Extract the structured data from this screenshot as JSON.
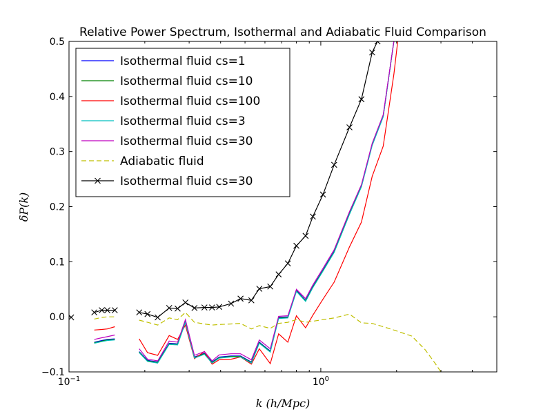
{
  "chart_data": {
    "type": "line",
    "title": "Relative Power Spectrum, Isothermal and Adiabatic Fluid Comparison",
    "xlabel": "k (h/Mpc)",
    "ylabel": "δP(k)",
    "xscale": "log",
    "xlim": [
      0.1,
      5.0
    ],
    "ylim": [
      -0.1,
      0.5
    ],
    "x_tick_labels": [
      {
        "value": 0.1,
        "base": "10",
        "exp": "−1"
      },
      {
        "value": 1.0,
        "base": "10",
        "exp": "0"
      }
    ],
    "y_ticks": [
      -0.1,
      0.0,
      0.1,
      0.2,
      0.3,
      0.4,
      0.5
    ],
    "y_tick_labels": [
      "−0.1",
      "0.0",
      "0.1",
      "0.2",
      "0.3",
      "0.4",
      "0.5"
    ],
    "legend_position": "upper-left",
    "series": [
      {
        "name": "Isothermal fluid cs=1",
        "color": "#0000ff",
        "style": "solid",
        "marker": "none",
        "points": [
          [
            0.126,
            -0.046
          ],
          [
            0.135,
            -0.043
          ],
          [
            0.142,
            -0.041
          ],
          [
            0.152,
            -0.04
          ],
          null,
          [
            0.19,
            -0.063
          ],
          [
            0.205,
            -0.079
          ],
          [
            0.225,
            -0.082
          ],
          [
            0.25,
            -0.048
          ],
          [
            0.27,
            -0.049
          ],
          [
            0.29,
            -0.008
          ],
          [
            0.315,
            -0.073
          ],
          [
            0.345,
            -0.066
          ],
          [
            0.37,
            -0.082
          ],
          [
            0.395,
            -0.073
          ],
          [
            0.44,
            -0.071
          ],
          [
            0.48,
            -0.071
          ],
          [
            0.53,
            -0.082
          ],
          [
            0.57,
            -0.046
          ],
          [
            0.63,
            -0.062
          ],
          [
            0.68,
            -0.001
          ],
          [
            0.74,
            0.0
          ],
          [
            0.8,
            0.048
          ],
          [
            0.87,
            0.03
          ],
          [
            0.93,
            0.055
          ],
          [
            1.02,
            0.085
          ],
          [
            1.13,
            0.119
          ],
          [
            1.3,
            0.188
          ],
          [
            1.45,
            0.238
          ],
          [
            1.6,
            0.313
          ],
          [
            1.77,
            0.365
          ],
          [
            1.95,
            0.5
          ]
        ]
      },
      {
        "name": "Isothermal fluid cs=10",
        "color": "#008000",
        "style": "solid",
        "marker": "none",
        "points": [
          [
            0.126,
            -0.047
          ],
          [
            0.135,
            -0.044
          ],
          [
            0.142,
            -0.042
          ],
          [
            0.152,
            -0.041
          ],
          null,
          [
            0.19,
            -0.064
          ],
          [
            0.205,
            -0.08
          ],
          [
            0.225,
            -0.083
          ],
          [
            0.25,
            -0.049
          ],
          [
            0.27,
            -0.05
          ],
          [
            0.29,
            -0.009
          ],
          [
            0.315,
            -0.074
          ],
          [
            0.345,
            -0.067
          ],
          [
            0.37,
            -0.083
          ],
          [
            0.395,
            -0.074
          ],
          [
            0.44,
            -0.072
          ],
          [
            0.48,
            -0.072
          ],
          [
            0.53,
            -0.083
          ],
          [
            0.57,
            -0.047
          ],
          [
            0.63,
            -0.063
          ],
          [
            0.68,
            -0.002
          ],
          [
            0.74,
            -0.001
          ],
          [
            0.8,
            0.047
          ],
          [
            0.87,
            0.029
          ],
          [
            0.93,
            0.054
          ],
          [
            1.02,
            0.084
          ],
          [
            1.13,
            0.118
          ],
          [
            1.3,
            0.187
          ],
          [
            1.45,
            0.237
          ],
          [
            1.6,
            0.312
          ],
          [
            1.77,
            0.364
          ],
          [
            1.95,
            0.5
          ]
        ]
      },
      {
        "name": "Isothermal fluid cs=100",
        "color": "#ff0000",
        "style": "solid",
        "marker": "none",
        "points": [
          [
            0.126,
            -0.024
          ],
          [
            0.135,
            -0.023
          ],
          [
            0.142,
            -0.022
          ],
          [
            0.152,
            -0.018
          ],
          null,
          [
            0.19,
            -0.04
          ],
          [
            0.205,
            -0.065
          ],
          [
            0.225,
            -0.07
          ],
          [
            0.25,
            -0.034
          ],
          [
            0.27,
            -0.041
          ],
          [
            0.29,
            -0.015
          ],
          [
            0.315,
            -0.076
          ],
          [
            0.345,
            -0.063
          ],
          [
            0.37,
            -0.086
          ],
          [
            0.395,
            -0.078
          ],
          [
            0.44,
            -0.077
          ],
          [
            0.48,
            -0.073
          ],
          [
            0.53,
            -0.086
          ],
          [
            0.57,
            -0.058
          ],
          [
            0.63,
            -0.085
          ],
          [
            0.68,
            -0.031
          ],
          [
            0.74,
            -0.046
          ],
          [
            0.8,
            0.002
          ],
          [
            0.87,
            -0.02
          ],
          [
            0.93,
            0.003
          ],
          [
            1.02,
            0.032
          ],
          [
            1.13,
            0.063
          ],
          [
            1.3,
            0.127
          ],
          [
            1.45,
            0.172
          ],
          [
            1.6,
            0.255
          ],
          [
            1.77,
            0.31
          ],
          [
            1.95,
            0.44
          ],
          [
            2.02,
            0.5
          ]
        ]
      },
      {
        "name": "Isothermal fluid cs=3",
        "color": "#00bfbf",
        "style": "solid",
        "marker": "none",
        "points": [
          [
            0.126,
            -0.048
          ],
          [
            0.135,
            -0.045
          ],
          [
            0.142,
            -0.043
          ],
          [
            0.152,
            -0.042
          ],
          null,
          [
            0.19,
            -0.065
          ],
          [
            0.205,
            -0.081
          ],
          [
            0.225,
            -0.084
          ],
          [
            0.25,
            -0.05
          ],
          [
            0.27,
            -0.051
          ],
          [
            0.29,
            -0.01
          ],
          [
            0.315,
            -0.075
          ],
          [
            0.345,
            -0.068
          ],
          [
            0.37,
            -0.084
          ],
          [
            0.395,
            -0.075
          ],
          [
            0.44,
            -0.073
          ],
          [
            0.48,
            -0.073
          ],
          [
            0.53,
            -0.084
          ],
          [
            0.57,
            -0.048
          ],
          [
            0.63,
            -0.064
          ],
          [
            0.68,
            -0.003
          ],
          [
            0.74,
            -0.002
          ],
          [
            0.8,
            0.046
          ],
          [
            0.87,
            0.028
          ],
          [
            0.93,
            0.053
          ],
          [
            1.02,
            0.083
          ],
          [
            1.13,
            0.117
          ],
          [
            1.3,
            0.186
          ],
          [
            1.45,
            0.236
          ],
          [
            1.6,
            0.311
          ],
          [
            1.77,
            0.363
          ],
          [
            1.95,
            0.5
          ]
        ]
      },
      {
        "name": "Isothermal fluid cs=30",
        "color": "#bf00bf",
        "style": "solid",
        "marker": "none",
        "points": [
          [
            0.126,
            -0.041
          ],
          [
            0.135,
            -0.038
          ],
          [
            0.142,
            -0.036
          ],
          [
            0.152,
            -0.033
          ],
          null,
          [
            0.19,
            -0.058
          ],
          [
            0.205,
            -0.077
          ],
          [
            0.225,
            -0.08
          ],
          [
            0.25,
            -0.044
          ],
          [
            0.27,
            -0.046
          ],
          [
            0.29,
            -0.005
          ],
          [
            0.315,
            -0.07
          ],
          [
            0.345,
            -0.063
          ],
          [
            0.37,
            -0.08
          ],
          [
            0.395,
            -0.069
          ],
          [
            0.44,
            -0.067
          ],
          [
            0.48,
            -0.067
          ],
          [
            0.53,
            -0.078
          ],
          [
            0.57,
            -0.042
          ],
          [
            0.63,
            -0.058
          ],
          [
            0.68,
            0.001
          ],
          [
            0.74,
            0.002
          ],
          [
            0.8,
            0.05
          ],
          [
            0.87,
            0.033
          ],
          [
            0.93,
            0.058
          ],
          [
            1.02,
            0.088
          ],
          [
            1.13,
            0.122
          ],
          [
            1.3,
            0.191
          ],
          [
            1.45,
            0.24
          ],
          [
            1.6,
            0.315
          ],
          [
            1.77,
            0.367
          ],
          [
            1.95,
            0.5
          ]
        ]
      },
      {
        "name": "Adiabatic fluid",
        "color": "#bfbf00",
        "style": "dashed",
        "marker": "none",
        "points": [
          [
            0.126,
            -0.004
          ],
          [
            0.135,
            -0.001
          ],
          [
            0.142,
            0.0
          ],
          [
            0.152,
            0.0
          ],
          null,
          [
            0.19,
            -0.006
          ],
          [
            0.205,
            -0.01
          ],
          [
            0.225,
            -0.015
          ],
          [
            0.25,
            -0.002
          ],
          [
            0.27,
            -0.005
          ],
          [
            0.29,
            0.008
          ],
          [
            0.315,
            -0.01
          ],
          [
            0.345,
            -0.013
          ],
          [
            0.37,
            -0.015
          ],
          [
            0.395,
            -0.014
          ],
          [
            0.44,
            -0.013
          ],
          [
            0.48,
            -0.012
          ],
          [
            0.53,
            -0.022
          ],
          [
            0.57,
            -0.016
          ],
          [
            0.63,
            -0.021
          ],
          [
            0.68,
            -0.012
          ],
          [
            0.74,
            -0.01
          ],
          [
            0.8,
            -0.005
          ],
          [
            0.87,
            -0.01
          ],
          [
            0.93,
            -0.008
          ],
          [
            1.02,
            -0.005
          ],
          [
            1.13,
            -0.002
          ],
          [
            1.3,
            0.005
          ],
          [
            1.45,
            -0.011
          ],
          [
            1.6,
            -0.012
          ],
          [
            1.77,
            -0.018
          ],
          [
            1.95,
            -0.024
          ],
          [
            2.3,
            -0.035
          ],
          [
            2.6,
            -0.06
          ],
          [
            2.85,
            -0.085
          ],
          [
            3.0,
            -0.1
          ]
        ]
      },
      {
        "name": "Isothermal fluid cs=30",
        "color": "#000000",
        "style": "solid",
        "marker": "x",
        "points": [
          [
            0.102,
            -0.001
          ],
          null,
          [
            0.126,
            0.008
          ],
          [
            0.135,
            0.012
          ],
          [
            0.142,
            0.012
          ],
          [
            0.152,
            0.012
          ],
          null,
          [
            0.19,
            0.008
          ],
          [
            0.205,
            0.005
          ],
          [
            0.225,
            -0.001
          ],
          [
            0.25,
            0.016
          ],
          [
            0.27,
            0.015
          ],
          [
            0.29,
            0.026
          ],
          [
            0.315,
            0.016
          ],
          [
            0.345,
            0.017
          ],
          [
            0.37,
            0.017
          ],
          [
            0.395,
            0.018
          ],
          [
            0.44,
            0.024
          ],
          [
            0.48,
            0.033
          ],
          [
            0.53,
            0.03
          ],
          [
            0.57,
            0.051
          ],
          [
            0.63,
            0.055
          ],
          [
            0.68,
            0.077
          ],
          [
            0.74,
            0.097
          ],
          [
            0.8,
            0.129
          ],
          [
            0.87,
            0.147
          ],
          [
            0.93,
            0.182
          ],
          [
            1.02,
            0.222
          ],
          [
            1.13,
            0.276
          ],
          [
            1.3,
            0.344
          ],
          [
            1.45,
            0.395
          ],
          [
            1.6,
            0.48
          ],
          [
            1.68,
            0.5
          ]
        ]
      }
    ]
  }
}
